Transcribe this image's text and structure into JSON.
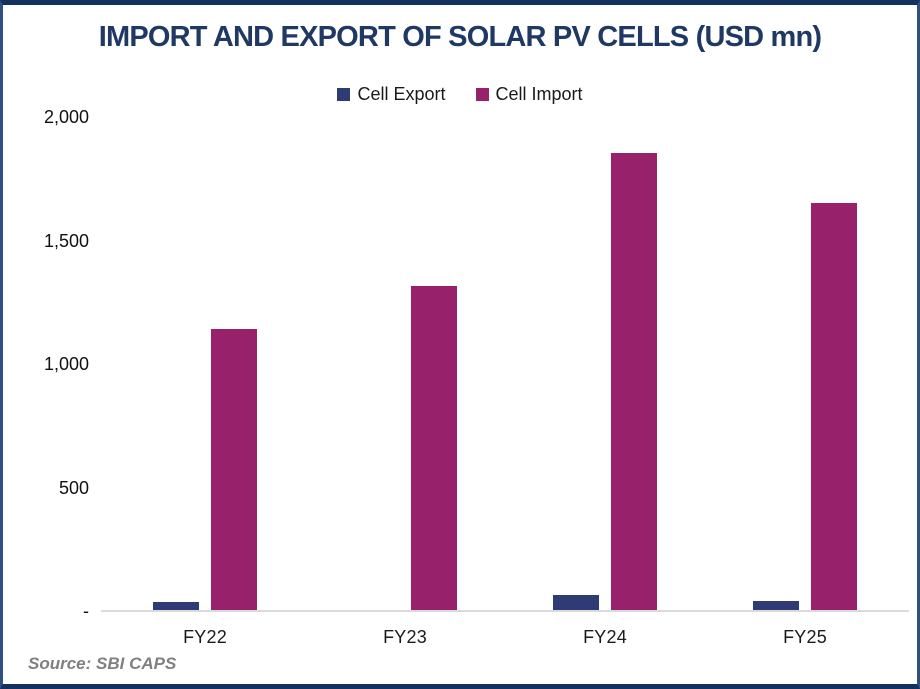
{
  "chart_data": {
    "type": "bar",
    "title": "IMPORT AND EXPORT OF SOLAR PV CELLS (USD mn)",
    "categories": [
      "FY22",
      "FY23",
      "FY24",
      "FY25"
    ],
    "series": [
      {
        "name": "Cell Export",
        "color": "#2E3B74",
        "values": [
          35,
          5,
          65,
          42
        ]
      },
      {
        "name": "Cell Import",
        "color": "#97216A",
        "values": [
          1140,
          1315,
          1855,
          1650
        ]
      }
    ],
    "ylim": [
      0,
      2000
    ],
    "yticks": [
      {
        "value": 0,
        "label": "-"
      },
      {
        "value": 500,
        "label": "500"
      },
      {
        "value": 1000,
        "label": "1,000"
      },
      {
        "value": 1500,
        "label": "1,500"
      },
      {
        "value": 2000,
        "label": "2,000"
      }
    ],
    "grid": false,
    "legend_position": "top",
    "source": "Source: SBI CAPS",
    "title_color": "#1F3864",
    "axis_line_color": "#DADADA"
  }
}
